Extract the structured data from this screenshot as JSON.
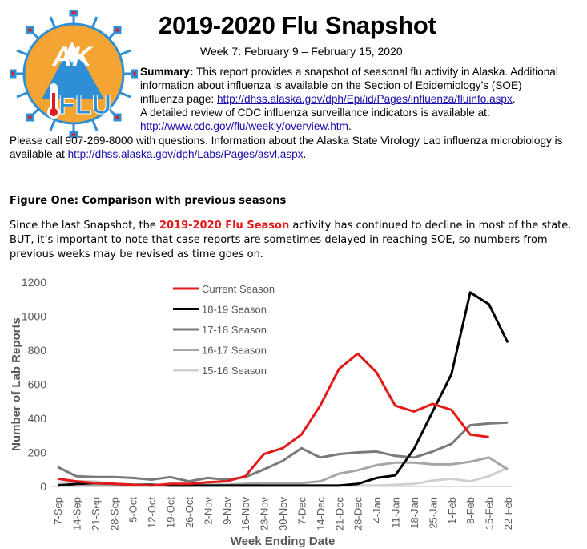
{
  "header": {
    "title": "2019-2020 Flu Snapshot",
    "subtitle": "Week 7: February 9 – February 15, 2020",
    "logo": {
      "letters": "AK",
      "word": "FLU",
      "colors": {
        "sun": "#f4a433",
        "ring": "#2e8fd6",
        "text": "#2e8fd6"
      }
    }
  },
  "summary": {
    "label": "Summary:",
    "line1_rest": " This report provides a snapshot of seasonal flu activity in Alaska. Additional",
    "line2": "information about influenza is available on the Section of Epidemiology’s (SOE)",
    "line3_prefix": "influenza page: ",
    "line3_link": "http://dhss.alaska.gov/dph/Epi/id/Pages/influenza/fluinfo.aspx",
    "line3_suffix": ".",
    "line4": "A detailed review of CDC influenza surveillance indicators is available at:",
    "line5_link": "http://www.cdc.gov/flu/weekly/overview.htm",
    "line5_suffix": ".",
    "line6": "Please call 907-269-8000 with questions. Information about the Alaska State Virology Lab influenza microbiology is",
    "line7_prefix": "available at ",
    "line7_link": "http://dhss.alaska.gov/dph/Labs/Pages/asvl.aspx",
    "line7_suffix": "."
  },
  "figure": {
    "heading": "Figure One: Comparison with previous seasons",
    "para_prefix": "Since the last Snapshot, the ",
    "para_highlight": "2019-2020 Flu Season",
    "para_rest": " activity has continued to decline in most of the state.  BUT, it’s important to note that case reports are sometimes delayed in reaching SOE, so numbers from previous weeks may be revised as time goes on."
  },
  "chart_data": {
    "type": "line",
    "xlabel": "Week Ending Date",
    "ylabel": "Number of Lab Reports",
    "ylim": [
      0,
      1200
    ],
    "yticks": [
      0,
      200,
      400,
      600,
      800,
      1000,
      1200
    ],
    "grid": false,
    "legend_position": "top-left",
    "categories": [
      "7-Sep",
      "14-Sep",
      "21-Sep",
      "28-Sep",
      "5-Oct",
      "12-Oct",
      "19-Oct",
      "26-Oct",
      "2-Nov",
      "9-Nov",
      "16-Nov",
      "23-Nov",
      "30-Nov",
      "7-Dec",
      "14-Dec",
      "21-Dec",
      "28-Dec",
      "4-Jan",
      "11-Jan",
      "18-Jan",
      "25-Jan",
      "1-Feb",
      "8-Feb",
      "15-Feb",
      "22-Feb"
    ],
    "series": [
      {
        "name": "Current Season",
        "color": "#e31a1a",
        "values": [
          45,
          30,
          20,
          15,
          10,
          5,
          15,
          15,
          25,
          30,
          60,
          190,
          225,
          305,
          475,
          690,
          780,
          670,
          475,
          440,
          485,
          450,
          305,
          290,
          null
        ]
      },
      {
        "name": "18-19 Season",
        "color": "#000000",
        "values": [
          5,
          15,
          20,
          15,
          10,
          10,
          5,
          5,
          5,
          5,
          5,
          5,
          5,
          5,
          5,
          5,
          15,
          50,
          65,
          220,
          440,
          660,
          1140,
          1070,
          845
        ]
      },
      {
        "name": "17-18 Season",
        "color": "#7a7a7a",
        "values": [
          115,
          60,
          55,
          55,
          50,
          40,
          55,
          30,
          50,
          40,
          55,
          100,
          150,
          225,
          170,
          190,
          200,
          205,
          180,
          170,
          205,
          250,
          360,
          370,
          375
        ]
      },
      {
        "name": "16-17 Season",
        "color": "#a6a6a6",
        "values": [
          10,
          5,
          5,
          5,
          5,
          5,
          5,
          5,
          10,
          10,
          15,
          20,
          20,
          20,
          30,
          75,
          95,
          125,
          140,
          140,
          130,
          130,
          145,
          170,
          100
        ]
      },
      {
        "name": "15-16 Season",
        "color": "#d0d0d0",
        "values": [
          20,
          30,
          30,
          10,
          5,
          5,
          5,
          5,
          5,
          5,
          5,
          5,
          5,
          5,
          5,
          5,
          5,
          5,
          10,
          15,
          35,
          45,
          30,
          60,
          110
        ]
      }
    ]
  }
}
